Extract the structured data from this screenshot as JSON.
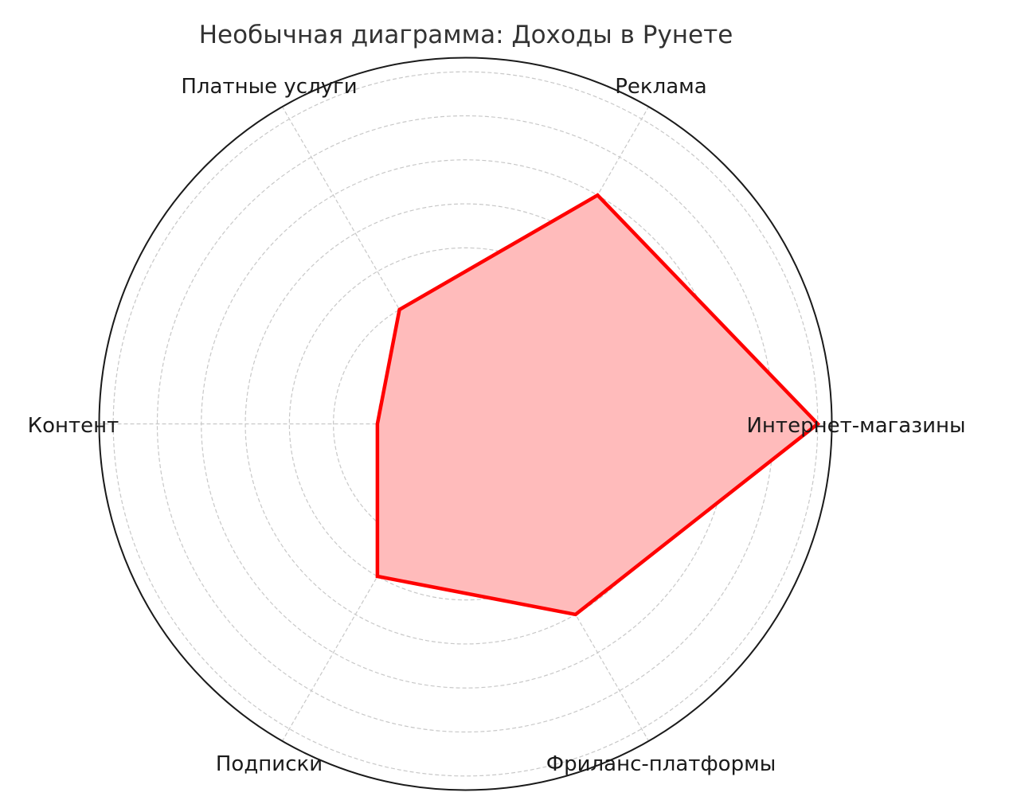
{
  "chart_data": {
    "type": "radar",
    "title": "Необычная диаграмма: Доходы в Рунете",
    "categories": [
      "Интернет-магазины",
      "Реклама",
      "Платные услуги",
      "Контент",
      "Подписки",
      "Фриланс-платформы"
    ],
    "series": [
      {
        "values": [
          8,
          6,
          3,
          2,
          4,
          5
        ]
      }
    ],
    "rlim": [
      0,
      8.32
    ],
    "rticks": [
      1,
      2,
      3,
      4,
      5,
      6,
      7,
      8
    ],
    "rtick_labels_visible": false,
    "grid": true,
    "line_color": "#ff0000",
    "fill_color": "#ffbbbb"
  }
}
